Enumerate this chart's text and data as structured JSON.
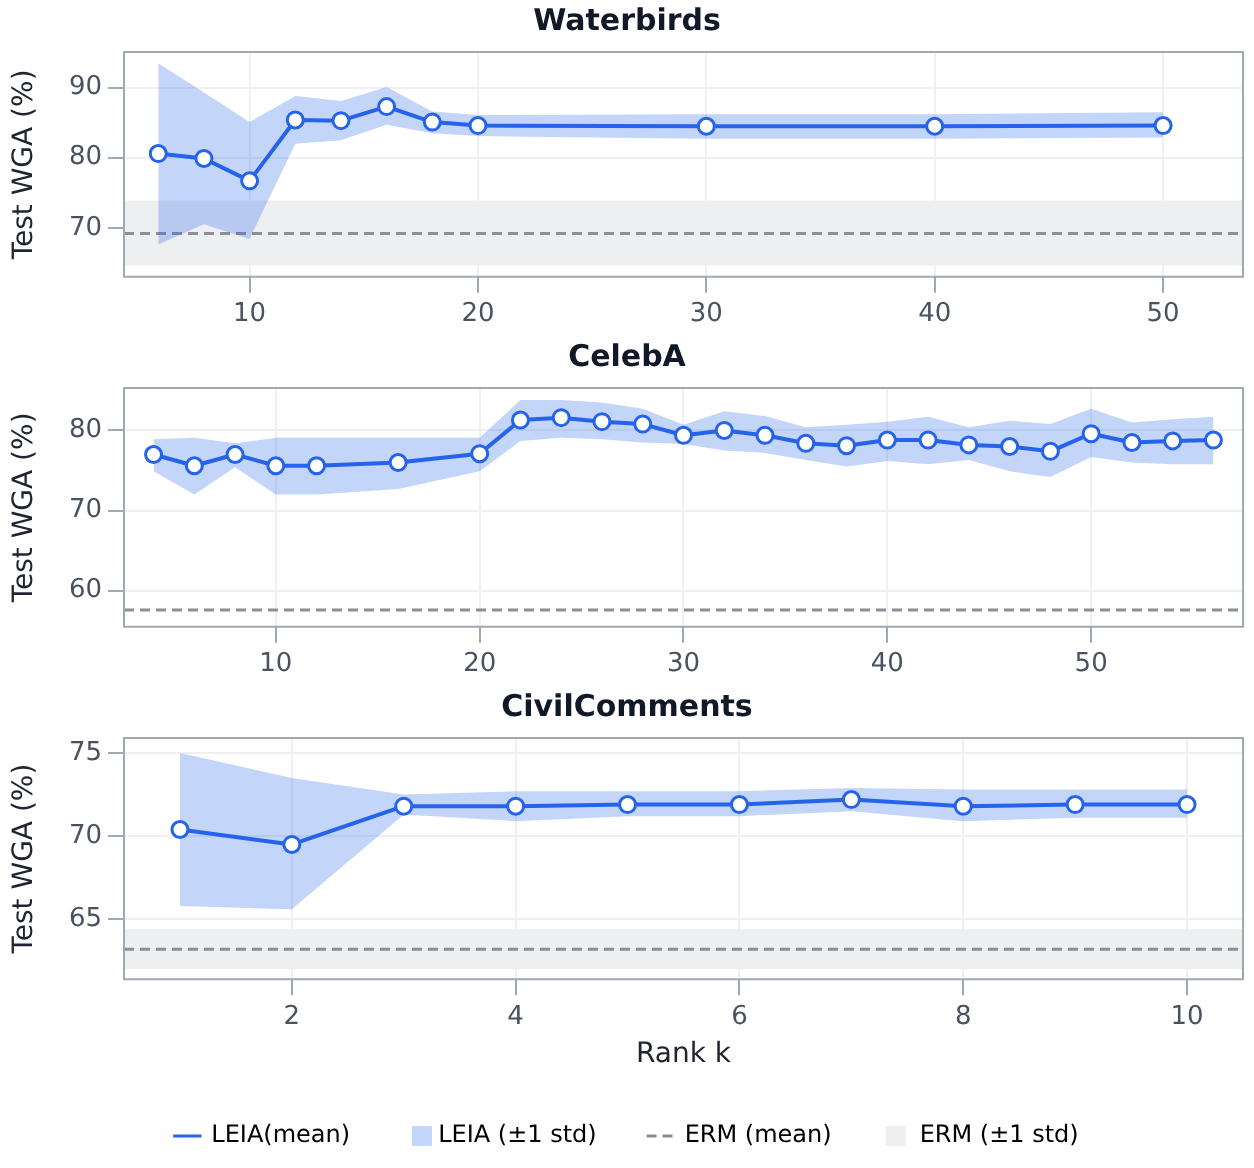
{
  "chart_data": [
    {
      "type": "line",
      "title": "Waterbirds",
      "ylabel": "Test WGA (%)",
      "x": [
        6,
        8,
        10,
        12,
        14,
        16,
        18,
        20,
        30,
        40,
        50
      ],
      "xlim": [
        4.5,
        53.5
      ],
      "ylim": [
        63,
        95.1
      ],
      "xticks": [
        10,
        20,
        30,
        40,
        50
      ],
      "yticks": [
        70,
        80,
        90
      ],
      "grid": true,
      "marker": "circle",
      "line_style": "solid",
      "legend": false,
      "series": [
        {
          "color": "#2563eb",
          "values": [
            80.6,
            79.9,
            76.7,
            85.4,
            85.3,
            87.3,
            85.1,
            84.6,
            84.5,
            84.5,
            84.6
          ],
          "lower": [
            67.6,
            70.5,
            68.4,
            82,
            82.5,
            84.7,
            83.5,
            83.1,
            82.7,
            82.7,
            82.9
          ],
          "upper": [
            93.5,
            89.3,
            85.1,
            88.8,
            88.1,
            90.1,
            86.6,
            86.1,
            86.2,
            86.2,
            86.5
          ]
        }
      ],
      "ref_lines": [
        {
          "axis": "y",
          "value": 69.2,
          "color": "#8a8f99",
          "line_style": "dashed"
        }
      ],
      "bands": [
        {
          "axis": "y",
          "from": 64.6,
          "to": 73.9,
          "color": "#eeeff1"
        }
      ]
    },
    {
      "type": "line",
      "title": "CelebA",
      "ylabel": "Test WGA (%)",
      "x": [
        4,
        6,
        8,
        10,
        12,
        16,
        20,
        22,
        24,
        26,
        28,
        30,
        32,
        34,
        36,
        38,
        40,
        42,
        44,
        46,
        48,
        50,
        52,
        54,
        56
      ],
      "xlim": [
        2.55,
        57.45
      ],
      "ylim": [
        55.5,
        85.3
      ],
      "xticks": [
        10,
        20,
        30,
        40,
        50
      ],
      "yticks": [
        60,
        70,
        80
      ],
      "grid": true,
      "marker": "circle",
      "line_style": "solid",
      "legend": false,
      "series": [
        {
          "color": "#2563eb",
          "values": [
            77.0,
            75.6,
            77.0,
            75.6,
            75.6,
            76.0,
            77.1,
            81.3,
            81.6,
            81.1,
            80.8,
            79.4,
            80.0,
            79.4,
            78.4,
            78.1,
            78.8,
            78.8,
            78.2,
            78.0,
            77.4,
            79.6,
            78.5,
            78.7,
            78.8
          ],
          "lower": [
            74.9,
            72.0,
            75.4,
            72.0,
            72.0,
            72.7,
            74.9,
            78.7,
            79.1,
            78.9,
            78.5,
            78.3,
            77.5,
            77.2,
            76.3,
            75.5,
            76.2,
            75.8,
            76.3,
            74.9,
            74.2,
            76.7,
            76.0,
            75.8,
            75.8
          ],
          "upper": [
            78.9,
            79.1,
            78.4,
            79.1,
            79.1,
            79.1,
            79.1,
            83.8,
            83.8,
            83.5,
            82.7,
            80.7,
            82.4,
            81.8,
            80.4,
            80.7,
            81.1,
            81.7,
            80.4,
            81.2,
            80.8,
            82.7,
            81.0,
            81.4,
            81.7
          ]
        }
      ],
      "ref_lines": [
        {
          "axis": "y",
          "value": 57.6,
          "color": "#8a8f99",
          "line_style": "dashed"
        }
      ]
    },
    {
      "type": "line",
      "title": "CivilComments",
      "xlabel": "Rank k",
      "ylabel": "Test WGA (%)",
      "x": [
        1,
        2,
        3,
        4,
        5,
        6,
        7,
        8,
        9,
        10
      ],
      "xlim": [
        0.5,
        10.5
      ],
      "ylim": [
        61.4,
        75.9
      ],
      "xticks": [
        2,
        4,
        6,
        8,
        10
      ],
      "yticks": [
        65,
        70,
        75
      ],
      "grid": true,
      "marker": "circle",
      "line_style": "solid",
      "legend": "bottom",
      "series": [
        {
          "name": "LEIA(mean)",
          "color": "#2563eb",
          "values": [
            70.4,
            69.5,
            71.8,
            71.8,
            71.9,
            71.9,
            72.2,
            71.8,
            71.9,
            71.9
          ],
          "lower": [
            65.8,
            65.6,
            71.3,
            70.9,
            71.2,
            71.2,
            71.5,
            70.9,
            71.1,
            71.1
          ],
          "upper": [
            75.0,
            73.5,
            72.5,
            72.7,
            72.7,
            72.7,
            72.9,
            72.8,
            72.8,
            72.8
          ]
        }
      ],
      "annotations": [
        "LEIA (±1 std)"
      ],
      "ref_lines": [
        {
          "axis": "y",
          "value": 63.2,
          "label": "ERM (mean)",
          "color": "#8a8f99",
          "line_style": "dashed"
        }
      ],
      "bands": [
        {
          "axis": "y",
          "from": 62.0,
          "to": 64.4,
          "label": "ERM (±1 std)",
          "color": "#eeeff1"
        }
      ]
    }
  ]
}
